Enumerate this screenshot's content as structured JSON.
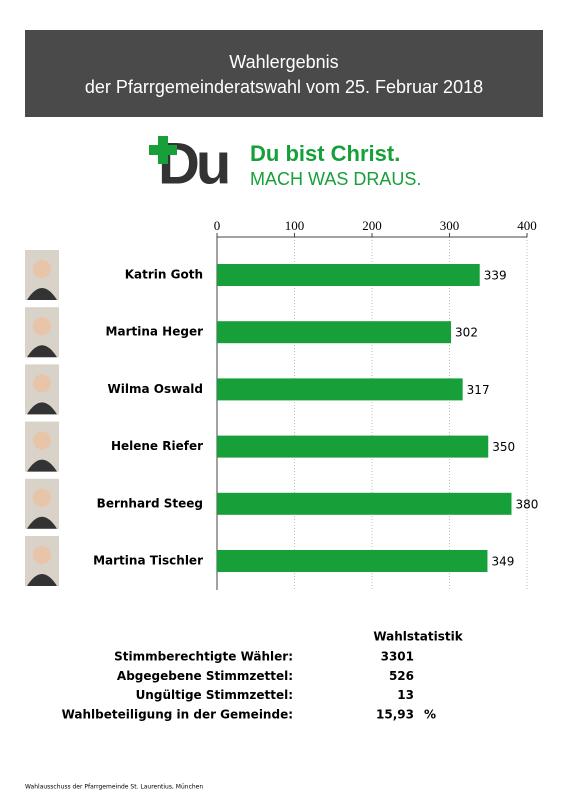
{
  "header": {
    "title": "Wahlergebnis",
    "subtitle": "der Pfarrgemeinderatswahl vom 25. Februar 2018"
  },
  "logo": {
    "mark": "Du",
    "slogan": "Du bist Christ.",
    "tagline": "MACH WAS DRAUS."
  },
  "chart_data": {
    "type": "bar",
    "orientation": "horizontal",
    "categories": [
      "Katrin Goth",
      "Martina Heger",
      "Wilma Oswald",
      "Helene Riefer",
      "Bernhard Steeg",
      "Martina Tischler"
    ],
    "values": [
      339,
      302,
      317,
      350,
      380,
      349
    ],
    "color": "#17a03a",
    "xlim": [
      0,
      400
    ],
    "xticks": [
      0,
      100,
      200,
      300,
      400
    ],
    "grid": true
  },
  "statistics": {
    "title": "Wahlstatistik",
    "rows": [
      {
        "label": "Stimmberechtigte Wähler:",
        "value": "3301"
      },
      {
        "label": "Abgegebene Stimmzettel:",
        "value": "526"
      },
      {
        "label": "Ungültige Stimmzettel:",
        "value": "13"
      },
      {
        "label": "Wahlbeteiligung in der Gemeinde:",
        "value": "15,93",
        "unit": "%"
      }
    ]
  },
  "footer": "Wahlausschuss der Pfarrgemeinde St. Laurentius, München"
}
